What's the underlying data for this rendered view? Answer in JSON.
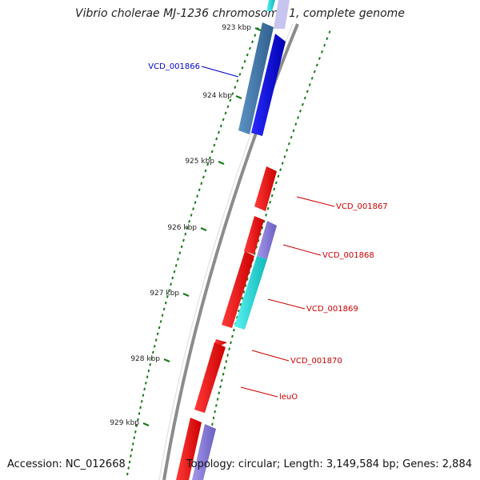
{
  "title": "Vibrio cholerae MJ-1236 chromosome 1, complete genome",
  "footer": {
    "accession": "Accession: NC_012668",
    "summary": "Topology: circular; Length: 3,149,584 bp; Genes: 2,884"
  },
  "scale_labels": [
    "923 kbp",
    "924 kbp",
    "925 kbp",
    "926 kbp",
    "927 kbp",
    "928 kbp",
    "929 kbp"
  ],
  "gene_labels": [
    {
      "text": "VCD_001866",
      "color": "#0000cc"
    },
    {
      "text": "VCD_001867",
      "color": "#cc0000"
    },
    {
      "text": "VCD_001868",
      "color": "#cc0000"
    },
    {
      "text": "VCD_001869",
      "color": "#cc0000"
    },
    {
      "text": "VCD_001870",
      "color": "#cc0000"
    },
    {
      "text": "leuO",
      "color": "#cc0000"
    }
  ],
  "colors": {
    "backbone": "#8c8c8c",
    "gc_ticks": "#1a7a1a",
    "forward_gene": "#ff0000",
    "reverse_gene_blue": "#0000ee",
    "reverse_gene_steel": "#4a7fb0",
    "cyan_gene": "#22dede",
    "lavender_gene": "#8a7fd8"
  }
}
